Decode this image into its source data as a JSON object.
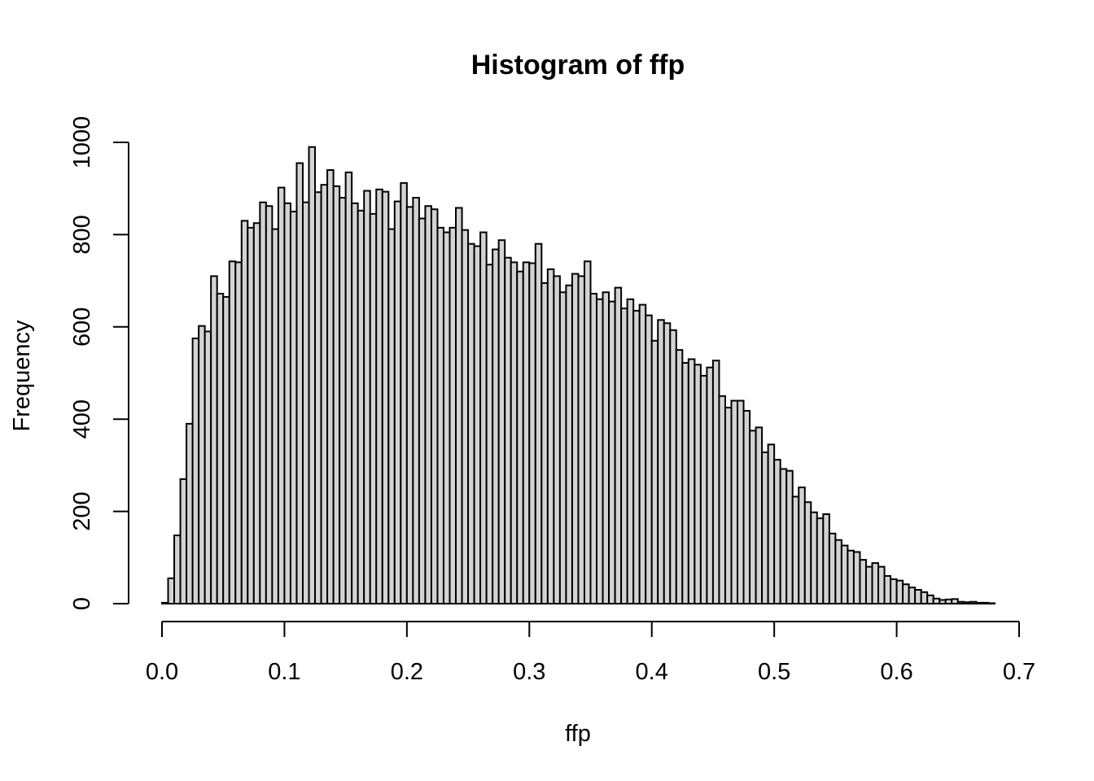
{
  "chart_data": {
    "type": "bar",
    "title": "Histogram of ffp",
    "xlabel": "ffp",
    "ylabel": "Frequency",
    "xlim": [
      0.0,
      0.7
    ],
    "ylim": [
      0,
      1000
    ],
    "x_ticks": [
      0.0,
      0.1,
      0.2,
      0.3,
      0.4,
      0.5,
      0.6,
      0.7
    ],
    "x_tick_labels": [
      "0.0",
      "0.1",
      "0.2",
      "0.3",
      "0.4",
      "0.5",
      "0.6",
      "0.7"
    ],
    "y_ticks": [
      0,
      200,
      400,
      600,
      800,
      1000
    ],
    "y_tick_labels": [
      "0",
      "200",
      "400",
      "600",
      "800",
      "1000"
    ],
    "bin_start": 0.0,
    "bin_width": 0.005,
    "grid": false,
    "values": [
      2,
      55,
      148,
      270,
      390,
      575,
      602,
      590,
      710,
      672,
      665,
      742,
      740,
      830,
      815,
      825,
      870,
      862,
      812,
      902,
      868,
      850,
      955,
      870,
      990,
      892,
      908,
      940,
      905,
      880,
      935,
      868,
      852,
      895,
      845,
      898,
      893,
      812,
      872,
      912,
      860,
      880,
      835,
      862,
      855,
      815,
      805,
      815,
      858,
      810,
      780,
      775,
      805,
      735,
      768,
      788,
      750,
      740,
      720,
      740,
      738,
      780,
      695,
      725,
      710,
      675,
      690,
      715,
      710,
      742,
      672,
      660,
      675,
      655,
      685,
      640,
      660,
      635,
      648,
      625,
      570,
      615,
      608,
      593,
      550,
      522,
      530,
      518,
      494,
      512,
      527,
      450,
      425,
      440,
      440,
      418,
      375,
      382,
      328,
      345,
      312,
      292,
      288,
      232,
      252,
      220,
      198,
      185,
      194,
      152,
      138,
      126,
      115,
      112,
      95,
      80,
      88,
      80,
      60,
      53,
      50,
      42,
      35,
      30,
      25,
      18,
      11,
      8,
      9,
      10,
      4,
      3,
      4,
      2,
      2,
      1
    ]
  }
}
